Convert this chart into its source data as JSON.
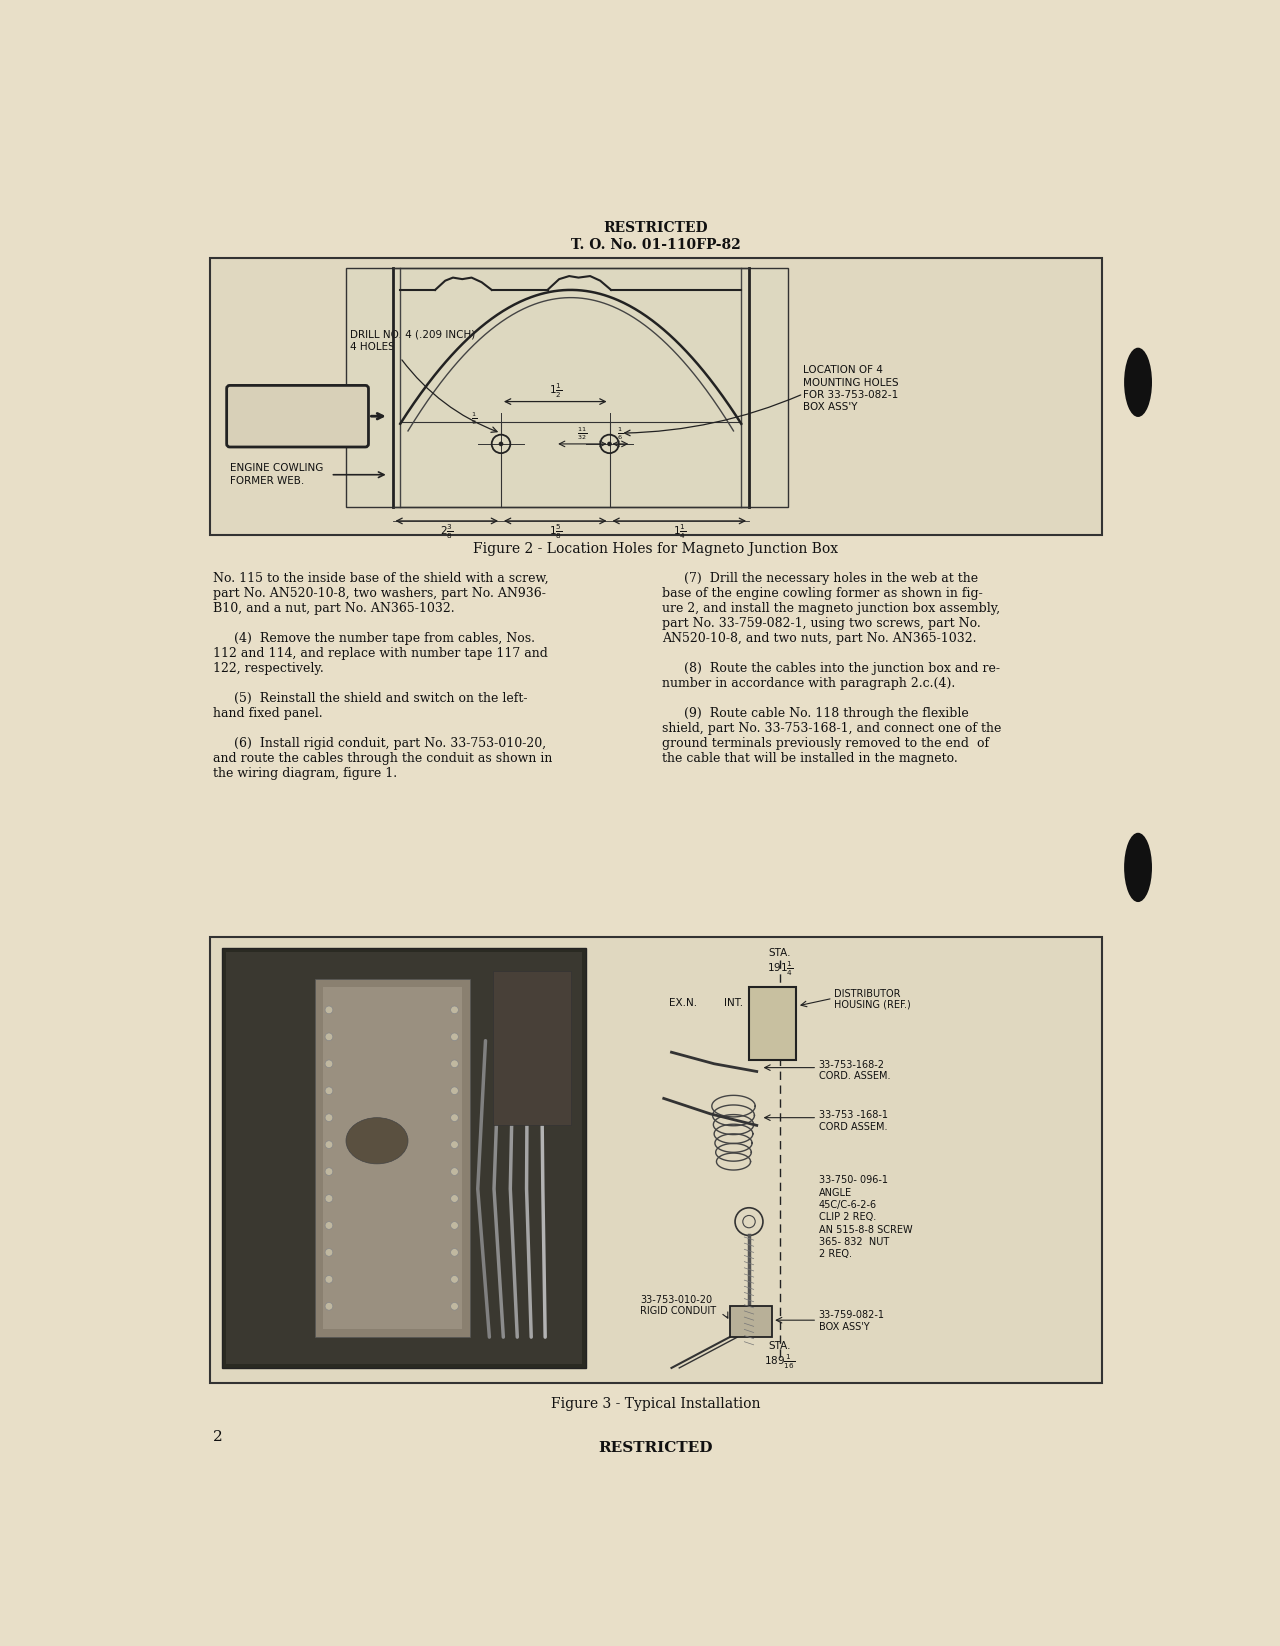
{
  "bg_color": "#e8dfc8",
  "header_line1": "RESTRICTED",
  "header_line2": "T. O. No. 01-110FP-82",
  "fig2_caption": "Figure 2 - Location Holes for Magneto Junction Box",
  "fig3_caption": "Figure 3 - Typical Installation",
  "page_number": "2",
  "footer_text": "RESTRICTED",
  "body_left_lines": [
    "No. 115 to the inside base of the shield with a screw,",
    "part No. AN520-10-8, two washers, part No. AN936-",
    "B10, and a nut, part No. AN365-1032.",
    "",
    "    (4)  Remove the number tape from cables, Nos.",
    "112 and 114, and replace with number tape 117 and",
    "122, respectively.",
    "",
    "    (5)  Reinstall the shield and switch on the left-",
    "hand fixed panel.",
    "",
    "    (6)  Install rigid conduit, part No. 33-753-010-20,",
    "and route the cables through the conduit as shown in",
    "the wiring diagram, figure 1."
  ],
  "body_right_lines": [
    "    (7)  Drill the necessary holes in the web at the",
    "base of the engine cowling former as shown in fig-",
    "ure 2, and install the magneto junction box assembly,",
    "part No. 33-759-082-1, using two screws, part No.",
    "AN520-10-8, and two nuts, part No. AN365-1032.",
    "",
    "    (8)  Route the cables into the junction box and re-",
    "number in accordance with paragraph 2.c.(4).",
    "",
    "    (9)  Route cable No. 118 through the flexible",
    "shield, part No. 33-753-168-1, and connect one of the",
    "ground terminals previously removed to the end  of",
    "the cable that will be installed in the magneto."
  ],
  "text_color": "#111111",
  "diagram_bg": "#e0d8c0",
  "box_outline": "#222222",
  "fig3_bg": "#e0d8c0"
}
